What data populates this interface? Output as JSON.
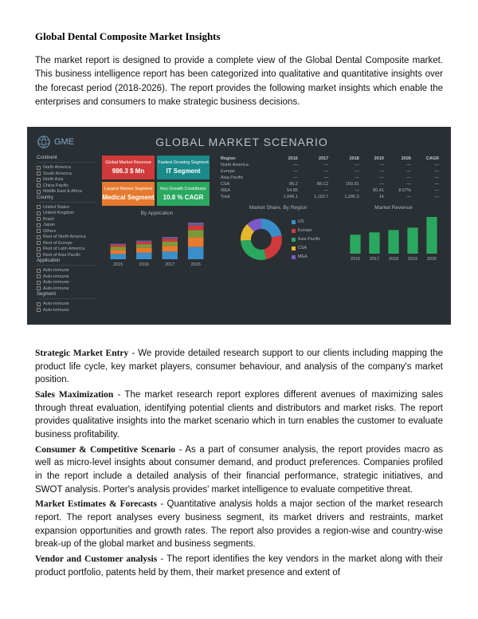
{
  "title": "Global Dental Composite Market Insights",
  "intro": "The market report is designed to provide a complete view of the Global Dental Composite market. This business intelligence report has been categorized into qualitative and quantitative insights over the forecast period (2018-2026). The report provides the following market insights which enable the enterprises and consumers to make strategic business decisions.",
  "dashboard": {
    "logo_text": "GME",
    "title": "GLOBAL MARKET SCENARIO",
    "filters": {
      "continent": {
        "label": "Continent",
        "items": [
          "North America",
          "South America",
          "North Asia",
          "China Pacific",
          "Middle East & Africa"
        ]
      },
      "country": {
        "label": "Country",
        "items": [
          "United States",
          "United Kingdom",
          "Brazil",
          "Japan",
          "Others",
          "Rest of North America",
          "Rest of Europe",
          "Rest of Latin America",
          "Rest of Asia Pacific"
        ]
      },
      "application": {
        "label": "Application",
        "items": [
          "Auto-immune",
          "Auto-immune",
          "Auto-immune",
          "Auto-immune"
        ]
      },
      "segment": {
        "label": "Segment",
        "items": [
          "Auto-immune",
          "Auto-immune"
        ]
      }
    },
    "kpis": [
      {
        "label": "Global Market Revenue",
        "value": "986.3 $ Mn",
        "color": "kpi-red"
      },
      {
        "label": "Fastest Growing Segment",
        "value": "IT Segment",
        "color": "kpi-teal"
      },
      {
        "label": "Largest Market Segment",
        "value": "Medical Segment",
        "color": "kpi-orange"
      },
      {
        "label": "Key Growth Contributor",
        "value": "10.8 % CAGR",
        "color": "kpi-green"
      }
    ],
    "table": {
      "headers": [
        "Region",
        "2016",
        "2017",
        "2018",
        "2019",
        "2026",
        "CAGR"
      ],
      "rows": [
        [
          "North America",
          "—",
          "—",
          "—",
          "—",
          "—",
          "—"
        ],
        [
          "Europe",
          "—",
          "—",
          "—",
          "—",
          "—",
          "—"
        ],
        [
          "Asia Pacific",
          "—",
          "—",
          "—",
          "—",
          "—",
          "—"
        ],
        [
          "CSA",
          "86.2",
          "88.C2",
          "160.91",
          "—",
          "—",
          "—"
        ],
        [
          "MEA",
          "54.85",
          "—",
          "—",
          "80.41",
          "8.07%",
          "—"
        ],
        [
          "Total",
          "1,046.1",
          "1,163.7",
          "1,286.3",
          "14",
          "—",
          "—"
        ]
      ]
    },
    "by_application": {
      "title": "By Application",
      "years": [
        "2015",
        "2016",
        "2017",
        "2026"
      ],
      "series": [
        {
          "color": "#3a8ec9",
          "vals": [
            18,
            22,
            26,
            42
          ]
        },
        {
          "color": "#e67a2e",
          "vals": [
            14,
            17,
            20,
            33
          ]
        },
        {
          "color": "#7a9a3a",
          "vals": [
            10,
            12,
            14,
            24
          ]
        },
        {
          "color": "#d13a3a",
          "vals": [
            7,
            8,
            10,
            16
          ]
        },
        {
          "color": "#6a5a9a",
          "vals": [
            4,
            5,
            6,
            10
          ]
        }
      ],
      "legend": [
        "MEA",
        "CSA",
        "Asia Pacific",
        "Europe",
        "North America"
      ]
    },
    "market_share": {
      "title": "Market Share, By Region",
      "slices": [
        {
          "label": "US",
          "value": 22,
          "color": "#3a8ec9"
        },
        {
          "label": "Europe",
          "value": 24,
          "color": "#d13a3a"
        },
        {
          "label": "Asia Pacific",
          "value": 28,
          "color": "#2aa860"
        },
        {
          "label": "CSA",
          "value": 14,
          "color": "#e6b82e"
        },
        {
          "label": "MEA",
          "value": 12,
          "color": "#7a5aca"
        }
      ]
    },
    "market_revenue": {
      "title": "Market Revenue",
      "years": [
        "2016",
        "2017",
        "2018",
        "2019",
        "2026"
      ],
      "values": [
        32,
        36,
        40,
        44,
        62
      ],
      "color": "#2aa860"
    }
  },
  "sections": [
    {
      "term": "Strategic Market Entry",
      "text": " - We provide detailed research support to our clients including mapping the product life cycle, key market players, consumer behaviour, and analysis of the company's market position."
    },
    {
      "term": "Sales Maximization",
      "text": " - The market research report explores different avenues of maximizing sales through threat evaluation, identifying potential clients and distributors and market risks. The report provides qualitative insights into the market scenario which in turn enables the customer to evaluate business profitability."
    },
    {
      "term": "Consumer & Competitive Scenario",
      "text": " - As a part of consumer analysis, the report provides macro as well as micro-level insights about consumer demand, and product preferences. Companies profiled in the report include a detailed analysis of their financial performance, strategic initiatives, and SWOT analysis. Porter's analysis provides' market intelligence to evaluate competitive threat."
    },
    {
      "term": "Market Estimates & Forecasts",
      "text": " - Quantitative analysis holds a major section of the market research report. The report analyses every business segment, its market drivers and restraints, market expansion opportunities and growth rates. The report also provides a region-wise and country-wise break-up of the global market and business segments."
    },
    {
      "term": "Vendor and Customer analysis",
      "text": " - The report identifies the key vendors in the market along with their product portfolio, patents held by them, their market presence and extent of"
    }
  ]
}
